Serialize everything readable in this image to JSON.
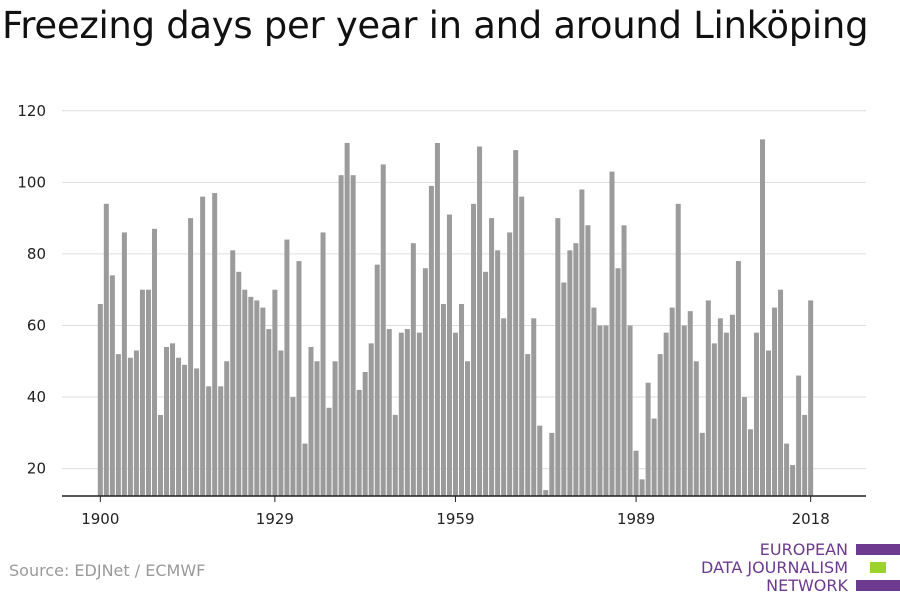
{
  "title": "Freezing days per year in and around Linköping",
  "source": "Source: EDJNet / ECMWF",
  "logo": {
    "lines": [
      "EUROPEAN",
      "DATA JOURNALISM",
      "NETWORK"
    ],
    "colors": {
      "text": "#6d3a8f",
      "bar_purple": "#6d3a8f",
      "bar_green": "#9bd22b"
    }
  },
  "chart_data": {
    "type": "bar",
    "title": "",
    "xlabel": "",
    "ylabel": "",
    "ylim": [
      12,
      120
    ],
    "yticks": [
      20,
      40,
      60,
      80,
      100,
      120
    ],
    "xticks": [
      1900,
      1929,
      1959,
      1989,
      2018
    ],
    "grid": true,
    "bar_color": "#9b9b9b",
    "x": [
      1900,
      1901,
      1902,
      1903,
      1904,
      1905,
      1906,
      1907,
      1908,
      1909,
      1910,
      1911,
      1912,
      1913,
      1914,
      1915,
      1916,
      1917,
      1918,
      1919,
      1920,
      1921,
      1922,
      1923,
      1924,
      1925,
      1926,
      1927,
      1928,
      1929,
      1930,
      1931,
      1932,
      1933,
      1934,
      1935,
      1936,
      1937,
      1938,
      1939,
      1940,
      1941,
      1942,
      1943,
      1944,
      1945,
      1946,
      1947,
      1948,
      1949,
      1950,
      1951,
      1952,
      1953,
      1954,
      1955,
      1956,
      1957,
      1958,
      1959,
      1960,
      1961,
      1962,
      1963,
      1964,
      1965,
      1966,
      1967,
      1968,
      1969,
      1970,
      1971,
      1972,
      1973,
      1974,
      1975,
      1976,
      1977,
      1978,
      1979,
      1980,
      1981,
      1982,
      1983,
      1984,
      1985,
      1986,
      1987,
      1988,
      1989,
      1990,
      1991,
      1992,
      1993,
      1994,
      1995,
      1996,
      1997,
      1998,
      1999,
      2000,
      2001,
      2002,
      2003,
      2004,
      2005,
      2006,
      2007,
      2008,
      2009,
      2010,
      2011,
      2012,
      2013,
      2014,
      2015,
      2016,
      2017,
      2018
    ],
    "values": [
      66,
      94,
      74,
      52,
      86,
      51,
      53,
      70,
      70,
      87,
      35,
      54,
      55,
      51,
      49,
      90,
      48,
      96,
      43,
      97,
      43,
      50,
      81,
      75,
      70,
      68,
      67,
      65,
      59,
      70,
      53,
      84,
      40,
      78,
      27,
      54,
      50,
      86,
      37,
      50,
      102,
      111,
      102,
      42,
      47,
      55,
      77,
      105,
      59,
      35,
      58,
      59,
      83,
      58,
      76,
      99,
      111,
      66,
      91,
      58,
      66,
      50,
      94,
      110,
      75,
      90,
      81,
      62,
      86,
      109,
      96,
      52,
      62,
      32,
      14,
      30,
      90,
      72,
      81,
      83,
      98,
      88,
      65,
      60,
      60,
      103,
      76,
      88,
      60,
      25,
      17,
      44,
      34,
      52,
      58,
      65,
      94,
      60,
      64,
      50,
      30,
      67,
      55,
      62,
      58,
      63,
      78,
      40,
      31,
      58,
      112,
      53,
      65,
      70,
      27,
      21,
      46,
      35,
      67
    ]
  }
}
